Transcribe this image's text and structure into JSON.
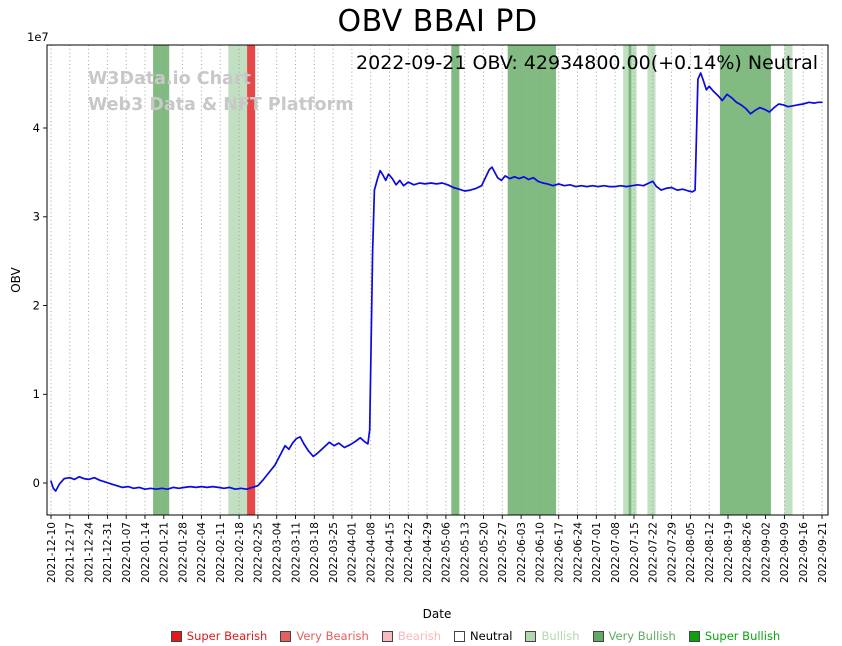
{
  "title": "OBV BBAI PD",
  "annotation": "2022-09-21 OBV: 42934800.00(+0.14%) Neutral",
  "watermark": {
    "line1": "W3Data.io Chart",
    "line2": "Web3 Data & NFT Platform"
  },
  "chart_data": {
    "type": "line",
    "title": "OBV BBAI PD",
    "xlabel": "Date",
    "ylabel": "OBV",
    "y_offset_label": "1e7",
    "y_unit": "1e7",
    "yticks": [
      0,
      1,
      2,
      3,
      4
    ],
    "ylim_e7": [
      -0.36,
      4.93
    ],
    "grid": "vertical-dotted",
    "categories": [
      "2021-12-10",
      "2021-12-17",
      "2021-12-24",
      "2021-12-31",
      "2022-01-07",
      "2022-01-14",
      "2022-01-21",
      "2022-01-28",
      "2022-02-04",
      "2022-02-11",
      "2022-02-18",
      "2022-02-25",
      "2022-03-04",
      "2022-03-11",
      "2022-03-18",
      "2022-03-25",
      "2022-04-01",
      "2022-04-08",
      "2022-04-15",
      "2022-04-22",
      "2022-04-29",
      "2022-05-06",
      "2022-05-13",
      "2022-05-20",
      "2022-05-27",
      "2022-06-03",
      "2022-06-10",
      "2022-06-17",
      "2022-06-24",
      "2022-07-01",
      "2022-07-08",
      "2022-07-15",
      "2022-07-22",
      "2022-07-29",
      "2022-08-05",
      "2022-08-12",
      "2022-08-19",
      "2022-08-26",
      "2022-09-02",
      "2022-09-09",
      "2022-09-16",
      "2022-09-21"
    ],
    "last_point": {
      "date": "2022-09-21",
      "obv": 42934800.0,
      "change_pct": 0.14,
      "signal": "Neutral"
    },
    "level_colors": {
      "super_bearish": "#e01a1a",
      "very_bearish": "#e4605e",
      "bearish": "#f5baba",
      "neutral": "#ffffff",
      "bullish": "#b2d8b2",
      "very_bullish": "#61aa61",
      "super_bullish": "#0fa00f"
    },
    "bands": [
      {
        "start": "2022-01-17",
        "end": "2022-01-23",
        "level": "very_bullish"
      },
      {
        "start": "2022-02-14",
        "end": "2022-02-21",
        "level": "bullish"
      },
      {
        "start": "2022-02-21",
        "end": "2022-02-24",
        "level": "super_bearish"
      },
      {
        "start": "2022-05-08",
        "end": "2022-05-11",
        "level": "very_bullish"
      },
      {
        "start": "2022-05-29",
        "end": "2022-06-16",
        "level": "very_bullish"
      },
      {
        "start": "2022-07-11",
        "end": "2022-07-16",
        "level": "bullish"
      },
      {
        "start": "2022-07-13",
        "end": "2022-07-14",
        "level": "very_bullish"
      },
      {
        "start": "2022-07-20",
        "end": "2022-07-23",
        "level": "bullish"
      },
      {
        "start": "2022-08-16",
        "end": "2022-09-04",
        "level": "very_bullish"
      },
      {
        "start": "2022-09-09",
        "end": "2022-09-12",
        "level": "bullish"
      }
    ],
    "series": [
      {
        "name": "OBV",
        "color": "#0a0ae0",
        "x_unit": "week-index from 2021-12-10",
        "points": [
          [
            0,
            0.02
          ],
          [
            0.12,
            -0.06
          ],
          [
            0.25,
            -0.09
          ],
          [
            0.45,
            -0.01
          ],
          [
            0.7,
            0.05
          ],
          [
            1,
            0.06
          ],
          [
            1.25,
            0.04
          ],
          [
            1.5,
            0.07
          ],
          [
            1.75,
            0.05
          ],
          [
            2,
            0.04
          ],
          [
            2.3,
            0.06
          ],
          [
            2.6,
            0.03
          ],
          [
            2.9,
            0.01
          ],
          [
            3.2,
            -0.01
          ],
          [
            3.5,
            -0.03
          ],
          [
            3.8,
            -0.05
          ],
          [
            4.1,
            -0.04
          ],
          [
            4.4,
            -0.06
          ],
          [
            4.7,
            -0.05
          ],
          [
            5,
            -0.07
          ],
          [
            5.3,
            -0.06
          ],
          [
            5.6,
            -0.07
          ],
          [
            5.9,
            -0.06
          ],
          [
            6.2,
            -0.07
          ],
          [
            6.5,
            -0.05
          ],
          [
            6.8,
            -0.06
          ],
          [
            7.1,
            -0.05
          ],
          [
            7.4,
            -0.04
          ],
          [
            7.7,
            -0.05
          ],
          [
            8,
            -0.04
          ],
          [
            8.3,
            -0.05
          ],
          [
            8.6,
            -0.04
          ],
          [
            8.9,
            -0.05
          ],
          [
            9.2,
            -0.06
          ],
          [
            9.5,
            -0.05
          ],
          [
            9.8,
            -0.07
          ],
          [
            10.1,
            -0.06
          ],
          [
            10.4,
            -0.07
          ],
          [
            10.7,
            -0.05
          ],
          [
            11,
            -0.03
          ],
          [
            11.3,
            0.04
          ],
          [
            11.6,
            0.12
          ],
          [
            11.9,
            0.2
          ],
          [
            12.2,
            0.32
          ],
          [
            12.45,
            0.42
          ],
          [
            12.65,
            0.38
          ],
          [
            12.85,
            0.45
          ],
          [
            13.05,
            0.5
          ],
          [
            13.25,
            0.52
          ],
          [
            13.45,
            0.44
          ],
          [
            13.7,
            0.36
          ],
          [
            13.95,
            0.3
          ],
          [
            14.2,
            0.34
          ],
          [
            14.5,
            0.4
          ],
          [
            14.8,
            0.46
          ],
          [
            15.05,
            0.42
          ],
          [
            15.3,
            0.45
          ],
          [
            15.6,
            0.4
          ],
          [
            15.9,
            0.43
          ],
          [
            16.2,
            0.47
          ],
          [
            16.45,
            0.51
          ],
          [
            16.65,
            0.47
          ],
          [
            16.85,
            0.44
          ],
          [
            16.95,
            0.6
          ],
          [
            17.1,
            2.6
          ],
          [
            17.2,
            3.3
          ],
          [
            17.35,
            3.42
          ],
          [
            17.5,
            3.52
          ],
          [
            17.65,
            3.47
          ],
          [
            17.8,
            3.41
          ],
          [
            17.95,
            3.48
          ],
          [
            18.15,
            3.43
          ],
          [
            18.35,
            3.36
          ],
          [
            18.55,
            3.41
          ],
          [
            18.75,
            3.35
          ],
          [
            19,
            3.39
          ],
          [
            19.3,
            3.36
          ],
          [
            19.6,
            3.38
          ],
          [
            19.9,
            3.37
          ],
          [
            20.2,
            3.38
          ],
          [
            20.5,
            3.37
          ],
          [
            20.8,
            3.38
          ],
          [
            21.1,
            3.36
          ],
          [
            21.4,
            3.33
          ],
          [
            21.7,
            3.31
          ],
          [
            22,
            3.29
          ],
          [
            22.3,
            3.3
          ],
          [
            22.6,
            3.32
          ],
          [
            22.9,
            3.35
          ],
          [
            23.1,
            3.44
          ],
          [
            23.3,
            3.53
          ],
          [
            23.45,
            3.56
          ],
          [
            23.6,
            3.5
          ],
          [
            23.75,
            3.44
          ],
          [
            23.95,
            3.41
          ],
          [
            24.15,
            3.46
          ],
          [
            24.4,
            3.43
          ],
          [
            24.65,
            3.45
          ],
          [
            24.9,
            3.43
          ],
          [
            25.15,
            3.45
          ],
          [
            25.4,
            3.42
          ],
          [
            25.65,
            3.44
          ],
          [
            25.9,
            3.4
          ],
          [
            26.15,
            3.38
          ],
          [
            26.4,
            3.37
          ],
          [
            26.7,
            3.35
          ],
          [
            27,
            3.37
          ],
          [
            27.3,
            3.35
          ],
          [
            27.6,
            3.36
          ],
          [
            27.9,
            3.34
          ],
          [
            28.2,
            3.35
          ],
          [
            28.5,
            3.34
          ],
          [
            28.8,
            3.35
          ],
          [
            29.1,
            3.34
          ],
          [
            29.4,
            3.35
          ],
          [
            29.7,
            3.34
          ],
          [
            30,
            3.34
          ],
          [
            30.3,
            3.35
          ],
          [
            30.6,
            3.34
          ],
          [
            30.9,
            3.35
          ],
          [
            31.2,
            3.36
          ],
          [
            31.5,
            3.35
          ],
          [
            31.8,
            3.38
          ],
          [
            32,
            3.4
          ],
          [
            32.2,
            3.34
          ],
          [
            32.45,
            3.3
          ],
          [
            32.7,
            3.32
          ],
          [
            33,
            3.33
          ],
          [
            33.3,
            3.3
          ],
          [
            33.6,
            3.31
          ],
          [
            33.9,
            3.29
          ],
          [
            34.1,
            3.28
          ],
          [
            34.25,
            3.3
          ],
          [
            34.4,
            4.55
          ],
          [
            34.55,
            4.62
          ],
          [
            34.7,
            4.53
          ],
          [
            34.85,
            4.43
          ],
          [
            35,
            4.47
          ],
          [
            35.2,
            4.42
          ],
          [
            35.45,
            4.37
          ],
          [
            35.7,
            4.31
          ],
          [
            35.95,
            4.38
          ],
          [
            36.2,
            4.34
          ],
          [
            36.45,
            4.29
          ],
          [
            36.7,
            4.26
          ],
          [
            36.95,
            4.22
          ],
          [
            37.2,
            4.16
          ],
          [
            37.45,
            4.2
          ],
          [
            37.7,
            4.23
          ],
          [
            37.95,
            4.21
          ],
          [
            38.2,
            4.18
          ],
          [
            38.45,
            4.23
          ],
          [
            38.7,
            4.27
          ],
          [
            38.95,
            4.26
          ],
          [
            39.2,
            4.24
          ],
          [
            39.45,
            4.25
          ],
          [
            39.7,
            4.26
          ],
          [
            40,
            4.27
          ],
          [
            40.3,
            4.29
          ],
          [
            40.6,
            4.28
          ],
          [
            40.8,
            4.29
          ],
          [
            41,
            4.29
          ]
        ]
      }
    ]
  },
  "legend": {
    "items": [
      {
        "label": "Super Bearish",
        "level": "super_bearish"
      },
      {
        "label": "Very Bearish",
        "level": "very_bearish"
      },
      {
        "label": "Bearish",
        "level": "bearish"
      },
      {
        "label": "Neutral",
        "level": "neutral"
      },
      {
        "label": "Bullish",
        "level": "bullish"
      },
      {
        "label": "Very Bullish",
        "level": "very_bullish"
      },
      {
        "label": "Super Bullish",
        "level": "super_bullish"
      }
    ]
  }
}
